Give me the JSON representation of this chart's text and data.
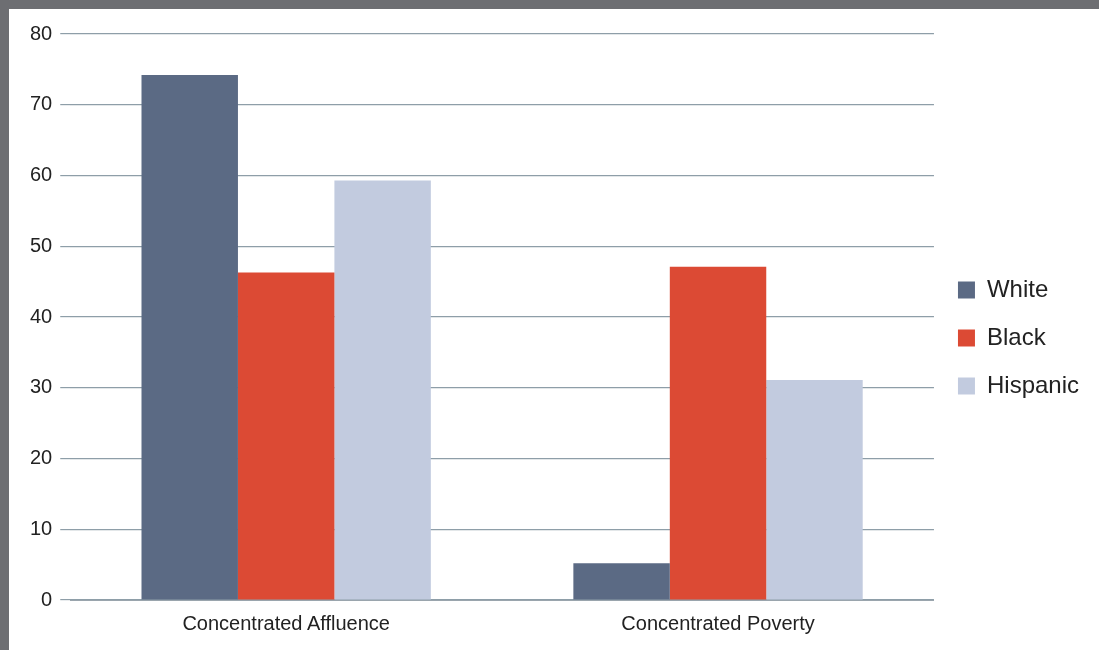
{
  "chart_data": {
    "type": "bar",
    "categories": [
      "Concentrated Affluence",
      "Concentrated Poverty"
    ],
    "series": [
      {
        "name": "White",
        "color": "#5b6a84",
        "values": [
          74.2,
          5.2
        ]
      },
      {
        "name": "Black",
        "color": "#dc4a34",
        "values": [
          46.3,
          47.1
        ]
      },
      {
        "name": "Hispanic",
        "color": "#c2cbdf",
        "values": [
          59.3,
          31.1
        ]
      }
    ],
    "ylim": [
      0,
      80
    ],
    "yticks": [
      0,
      10,
      20,
      30,
      40,
      50,
      60,
      70,
      80
    ],
    "grid": "y",
    "legend": "right"
  }
}
